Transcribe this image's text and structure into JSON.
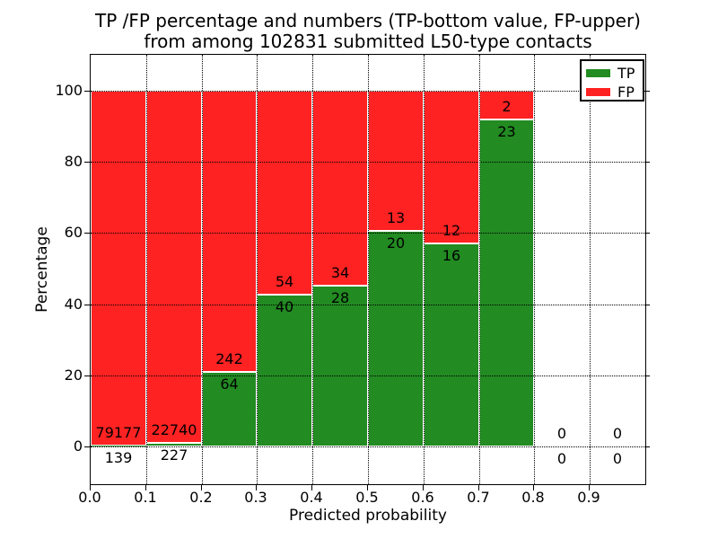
{
  "chart_data": {
    "type": "bar",
    "stacked": true,
    "title_lines": [
      "TP /FP percentage and numbers (TP-bottom value, FP-upper)",
      "from among 102831 submitted L50-type contacts"
    ],
    "xlabel": "Predicted probability",
    "ylabel": "Percentage",
    "x_tick_labels": [
      "0.0",
      "0.1",
      "0.2",
      "0.3",
      "0.4",
      "0.5",
      "0.6",
      "0.7",
      "0.8",
      "0.9"
    ],
    "y_ticks": [
      0,
      20,
      40,
      60,
      80,
      100
    ],
    "xlim": [
      0.0,
      1.0
    ],
    "ylim_percent": [
      -11,
      109
    ],
    "bins": {
      "start": 0.0,
      "width": 0.1,
      "count": 10
    },
    "bar_unit": "percent of contacts in bin (TP% + FP% = 100)",
    "series": [
      {
        "name": "TP",
        "color": "#228b22",
        "stack_position": "bottom",
        "values": [
          139,
          227,
          64,
          40,
          28,
          20,
          16,
          23,
          0,
          0
        ]
      },
      {
        "name": "FP",
        "color": "#ff2222",
        "stack_position": "top",
        "values": [
          79177,
          22740,
          242,
          54,
          34,
          13,
          12,
          2,
          0,
          0
        ]
      }
    ],
    "tp_percent_by_bin": [
      0.18,
      0.99,
      20.92,
      42.55,
      45.16,
      60.61,
      57.14,
      92.0,
      null,
      null
    ],
    "legend": {
      "position": "upper right"
    },
    "grid": {
      "style": "dotted",
      "color": "#000000"
    },
    "bar_edge_color": "#ffffff"
  }
}
